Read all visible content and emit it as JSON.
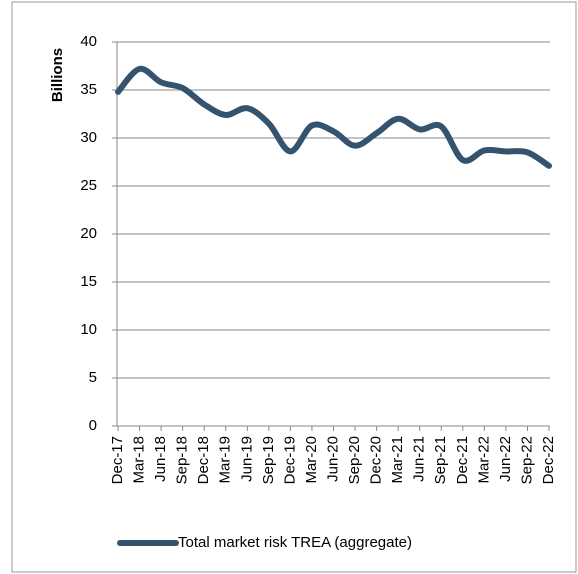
{
  "chart_data": {
    "type": "line",
    "y_axis_label": "Billions",
    "categories": [
      "Dec-17",
      "Mar-18",
      "Jun-18",
      "Sep-18",
      "Dec-18",
      "Mar-19",
      "Jun-19",
      "Sep-19",
      "Dec-19",
      "Mar-20",
      "Jun-20",
      "Sep-20",
      "Dec-20",
      "Mar-21",
      "Jun-21",
      "Sep-21",
      "Dec-21",
      "Mar-22",
      "Jun-22",
      "Sep-22",
      "Dec-22"
    ],
    "series": [
      {
        "name": "Total market risk TREA (aggregate)",
        "color": "#34536f",
        "values": [
          34.8,
          37.2,
          35.8,
          35.2,
          33.5,
          32.4,
          33.1,
          31.5,
          28.6,
          31.3,
          30.7,
          29.2,
          30.5,
          32.0,
          30.9,
          31.2,
          27.7,
          28.7,
          28.6,
          28.5,
          27.1
        ]
      }
    ],
    "ylim": [
      0,
      40
    ],
    "yticks": [
      0,
      5,
      10,
      15,
      20,
      25,
      30,
      35,
      40
    ],
    "grid": true,
    "legend": "bottom"
  }
}
